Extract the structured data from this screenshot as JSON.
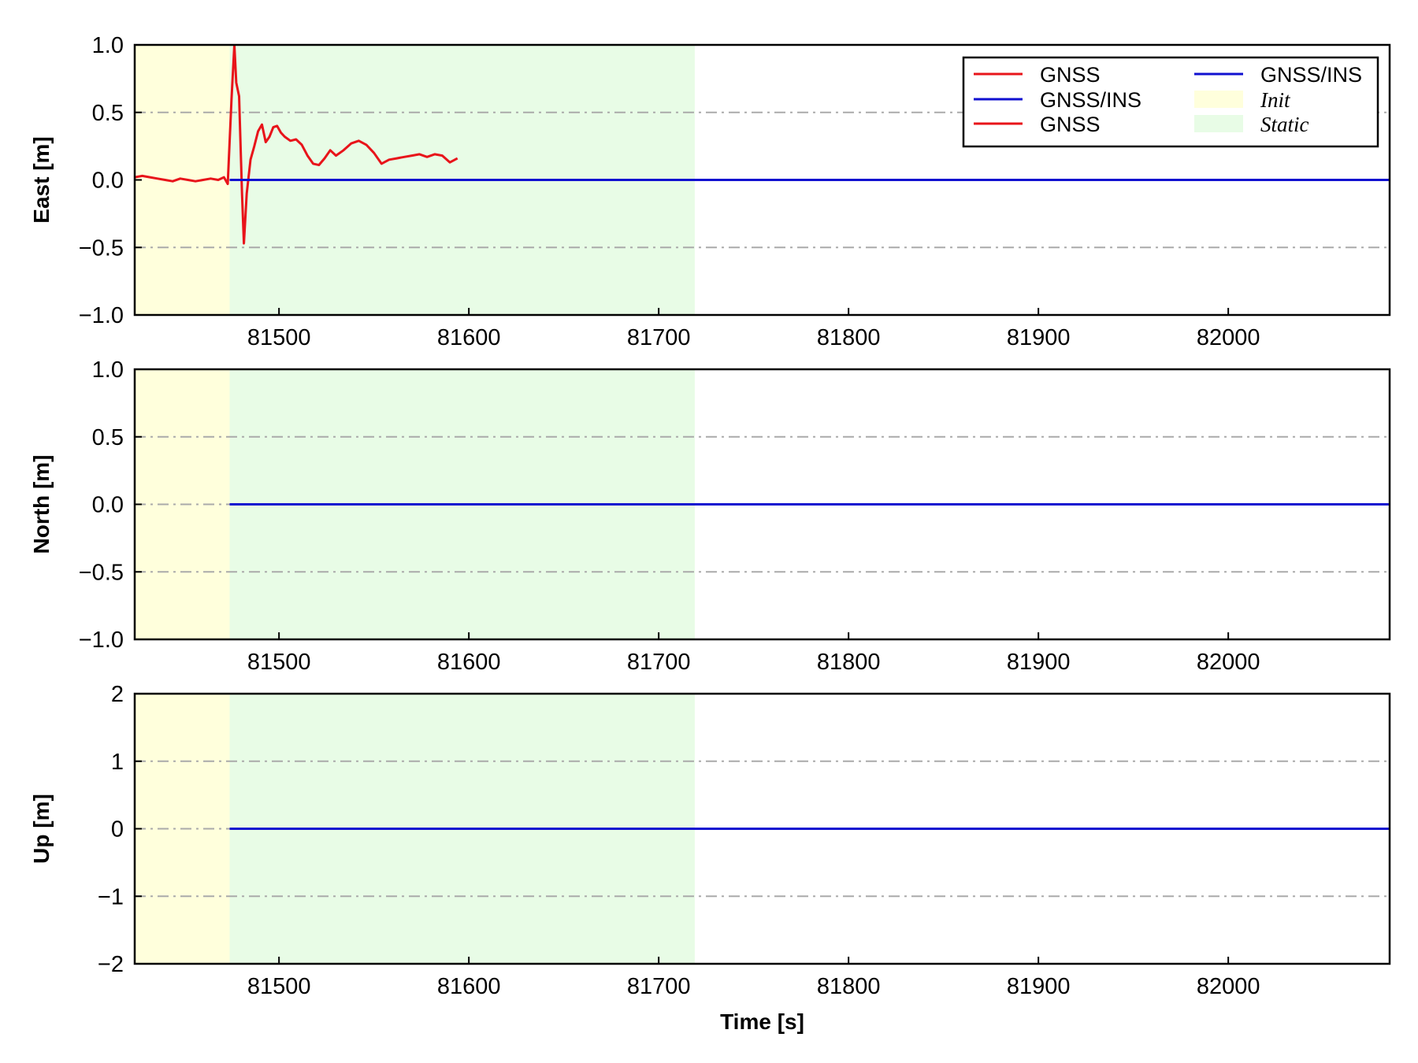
{
  "chart_data": {
    "type": "line",
    "xlabel": "Time [s]",
    "xlim": [
      81424,
      82085
    ],
    "xticks": [
      81500,
      81600,
      81700,
      81800,
      81900,
      82000
    ],
    "shaded_regions": [
      {
        "name": "Init",
        "x_start": 81424,
        "x_end": 81474,
        "color": "#ffffdc"
      },
      {
        "name": "Static",
        "x_start": 81474,
        "x_end": 81719,
        "color": "#e8fce6"
      }
    ],
    "legend": {
      "placement": "top-right",
      "entries": [
        {
          "label": "GNSS",
          "kind": "line",
          "color": "#e8141a"
        },
        {
          "label": "GNSS/INS",
          "kind": "line",
          "color": "#1010d0"
        },
        {
          "label": "GNSS",
          "kind": "line",
          "color": "#e8141a"
        },
        {
          "label": "GNSS/INS",
          "kind": "line",
          "color": "#1010d0"
        },
        {
          "label": "Init",
          "kind": "patch",
          "color": "#ffffdc"
        },
        {
          "label": "Static",
          "kind": "patch",
          "color": "#e8fce6"
        }
      ]
    },
    "panels": [
      {
        "ylabel": "East [m]",
        "ylim": [
          -1.0,
          1.0
        ],
        "yticks": [
          -1.0,
          -0.5,
          0.0,
          0.5,
          1.0
        ],
        "ytick_labels": [
          "−1.0",
          "−0.5",
          "0.0",
          "0.5",
          "1.0"
        ],
        "gridlines": [
          -0.5,
          0.5
        ],
        "series": [
          {
            "color": "#e8141a",
            "x": [
              81424,
              81428,
              81432,
              81436,
              81440,
              81444,
              81448,
              81452,
              81456,
              81460,
              81464,
              81468,
              81471,
              81473,
              81475,
              81476.5,
              81477.5,
              81479,
              81480.5,
              81481.5,
              81483,
              81485,
              81487,
              81489,
              81491,
              81493,
              81495,
              81497,
              81499,
              81501,
              81503,
              81506,
              81509,
              81512,
              81515,
              81518,
              81521,
              81524,
              81527,
              81530,
              81534,
              81538,
              81542,
              81546,
              81550,
              81554,
              81558,
              81562,
              81566,
              81570,
              81574,
              81578,
              81582,
              81586,
              81590,
              81594
            ],
            "y": [
              0.02,
              0.03,
              0.02,
              0.01,
              0.0,
              -0.01,
              0.01,
              0.0,
              -0.01,
              0.0,
              0.01,
              0.0,
              0.02,
              -0.03,
              0.6,
              1.0,
              0.72,
              0.62,
              -0.1,
              -0.47,
              -0.1,
              0.15,
              0.25,
              0.36,
              0.41,
              0.28,
              0.32,
              0.39,
              0.4,
              0.35,
              0.32,
              0.29,
              0.3,
              0.26,
              0.18,
              0.12,
              0.11,
              0.16,
              0.22,
              0.18,
              0.22,
              0.27,
              0.29,
              0.26,
              0.2,
              0.12,
              0.15,
              0.16,
              0.17,
              0.18,
              0.19,
              0.17,
              0.19,
              0.18,
              0.13,
              0.16
            ]
          },
          {
            "color": "#1010d0",
            "x": [
              81474,
              82085
            ],
            "y": [
              0.0,
              0.0
            ]
          }
        ]
      },
      {
        "ylabel": "North [m]",
        "ylim": [
          -1.0,
          1.0
        ],
        "yticks": [
          -1.0,
          -0.5,
          0.0,
          0.5,
          1.0
        ],
        "ytick_labels": [
          "−1.0",
          "−0.5",
          "0.0",
          "0.5",
          "1.0"
        ],
        "gridlines": [
          -0.5,
          0.0,
          0.5
        ],
        "series": [
          {
            "color": "#1010d0",
            "x": [
              81474,
              82085
            ],
            "y": [
              0.0,
              0.0
            ]
          }
        ]
      },
      {
        "ylabel": "Up [m]",
        "ylim": [
          -2,
          2
        ],
        "yticks": [
          -2,
          -1,
          0,
          1,
          2
        ],
        "ytick_labels": [
          "−2",
          "−1",
          "0",
          "1",
          "2"
        ],
        "gridlines": [
          -1,
          0,
          1
        ],
        "series": [
          {
            "color": "#1010d0",
            "x": [
              81474,
              82085
            ],
            "y": [
              0,
              0
            ]
          }
        ]
      }
    ]
  }
}
